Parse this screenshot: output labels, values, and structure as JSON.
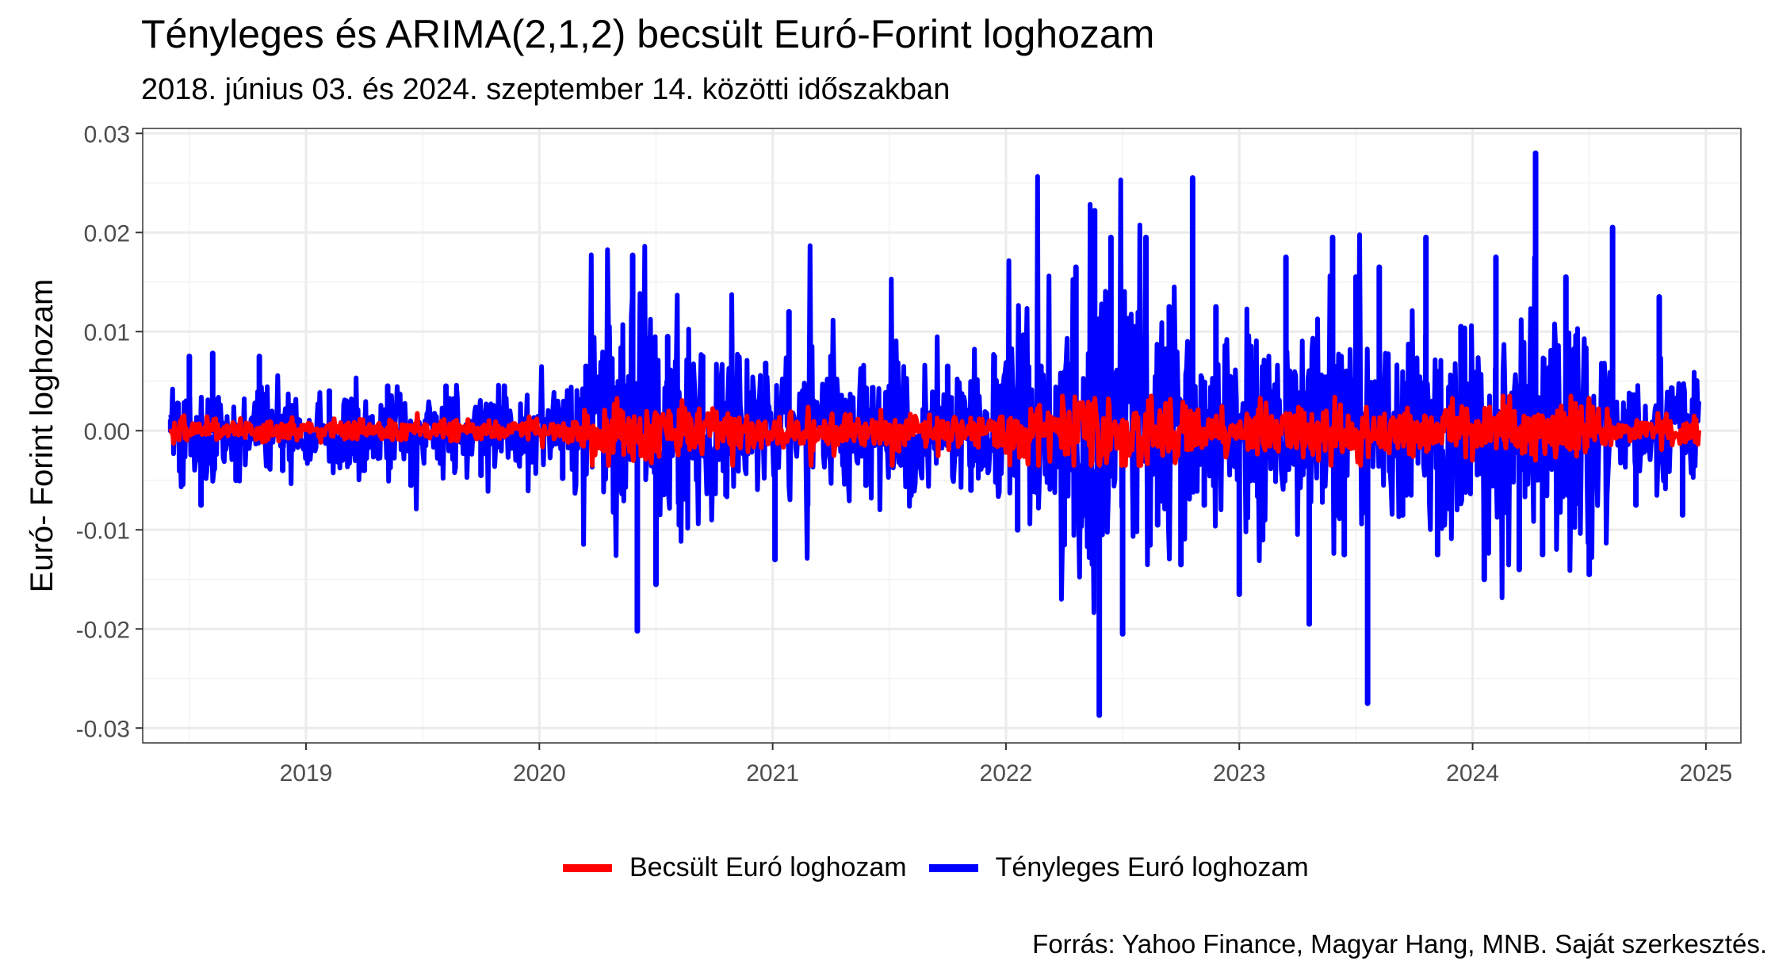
{
  "chart_data": {
    "type": "line",
    "title": "Tényleges és ARIMA(2,1,2) becsült Euró-Forint loghozam",
    "subtitle": "2018. június 03. és 2024. szeptember 14. közötti időszakban",
    "xlabel": "",
    "ylabel": "Euró- Forint loghozam",
    "xlim": [
      2018.3,
      2025.15
    ],
    "ylim": [
      -0.0315,
      0.0305
    ],
    "x_ticks": [
      2019,
      2020,
      2021,
      2022,
      2023,
      2024,
      2025
    ],
    "x_tick_labels": [
      "2019",
      "2020",
      "2021",
      "2022",
      "2023",
      "2024",
      "2025"
    ],
    "y_ticks": [
      -0.03,
      -0.02,
      -0.01,
      0.0,
      0.01,
      0.02,
      0.03
    ],
    "y_tick_labels": [
      "-0.03",
      "-0.02",
      "-0.01",
      "0.00",
      "0.01",
      "0.02",
      "0.03"
    ],
    "grid": true,
    "legend_position": "bottom",
    "series": [
      {
        "name": "Tényleges Euró loghozam",
        "color": "#0000ff",
        "sampled_extremes": [
          {
            "x": 2018.42,
            "y": 0.001
          },
          {
            "x": 2018.47,
            "y": -0.004
          },
          {
            "x": 2018.5,
            "y": 0.0075
          },
          {
            "x": 2018.55,
            "y": -0.0075
          },
          {
            "x": 2018.6,
            "y": 0.0078
          },
          {
            "x": 2018.7,
            "y": -0.005
          },
          {
            "x": 2018.8,
            "y": 0.0075
          },
          {
            "x": 2018.9,
            "y": -0.004
          },
          {
            "x": 2019.1,
            "y": 0.004
          },
          {
            "x": 2019.25,
            "y": -0.004
          },
          {
            "x": 2019.35,
            "y": 0.0045
          },
          {
            "x": 2019.45,
            "y": -0.0055
          },
          {
            "x": 2019.6,
            "y": 0.0045
          },
          {
            "x": 2019.75,
            "y": -0.0045
          },
          {
            "x": 2019.85,
            "y": 0.0045
          },
          {
            "x": 2020.1,
            "y": -0.0048
          },
          {
            "x": 2020.2,
            "y": 0.0065
          },
          {
            "x": 2020.37,
            "y": 0.0045
          },
          {
            "x": 2020.4,
            "y": 0.0177
          },
          {
            "x": 2020.42,
            "y": -0.0202
          },
          {
            "x": 2020.47,
            "y": 0.0093
          },
          {
            "x": 2020.5,
            "y": -0.0155
          },
          {
            "x": 2020.55,
            "y": 0.0095
          },
          {
            "x": 2020.6,
            "y": -0.0095
          },
          {
            "x": 2020.7,
            "y": 0.0075
          },
          {
            "x": 2020.8,
            "y": -0.0065
          },
          {
            "x": 2020.97,
            "y": 0.0068
          },
          {
            "x": 2021.01,
            "y": -0.013
          },
          {
            "x": 2021.07,
            "y": 0.012
          },
          {
            "x": 2021.15,
            "y": -0.0075
          },
          {
            "x": 2021.25,
            "y": 0.0075
          },
          {
            "x": 2021.4,
            "y": -0.0055
          },
          {
            "x": 2021.5,
            "y": 0.0045
          },
          {
            "x": 2021.6,
            "y": -0.005
          },
          {
            "x": 2021.75,
            "y": 0.0065
          },
          {
            "x": 2021.85,
            "y": -0.006
          },
          {
            "x": 2021.95,
            "y": 0.0075
          },
          {
            "x": 2022.05,
            "y": -0.01
          },
          {
            "x": 2022.15,
            "y": 0.0065
          },
          {
            "x": 2022.25,
            "y": -0.0115
          },
          {
            "x": 2022.3,
            "y": 0.0165
          },
          {
            "x": 2022.34,
            "y": -0.0085
          },
          {
            "x": 2022.38,
            "y": 0.0222
          },
          {
            "x": 2022.4,
            "y": -0.0287
          },
          {
            "x": 2022.45,
            "y": 0.0195
          },
          {
            "x": 2022.5,
            "y": -0.0205
          },
          {
            "x": 2022.55,
            "y": 0.0105
          },
          {
            "x": 2022.6,
            "y": 0.0195
          },
          {
            "x": 2022.65,
            "y": -0.0095
          },
          {
            "x": 2022.7,
            "y": 0.0125
          },
          {
            "x": 2022.75,
            "y": -0.0135
          },
          {
            "x": 2022.8,
            "y": 0.0255
          },
          {
            "x": 2022.85,
            "y": -0.0075
          },
          {
            "x": 2022.9,
            "y": 0.0125
          },
          {
            "x": 2023.0,
            "y": -0.0165
          },
          {
            "x": 2023.05,
            "y": 0.0085
          },
          {
            "x": 2023.1,
            "y": -0.011
          },
          {
            "x": 2023.2,
            "y": 0.0175
          },
          {
            "x": 2023.3,
            "y": -0.0195
          },
          {
            "x": 2023.4,
            "y": 0.0195
          },
          {
            "x": 2023.45,
            "y": -0.0125
          },
          {
            "x": 2023.5,
            "y": 0.0155
          },
          {
            "x": 2023.55,
            "y": -0.0275
          },
          {
            "x": 2023.6,
            "y": 0.0165
          },
          {
            "x": 2023.7,
            "y": -0.0085
          },
          {
            "x": 2023.8,
            "y": 0.0195
          },
          {
            "x": 2023.85,
            "y": -0.0125
          },
          {
            "x": 2023.95,
            "y": 0.0105
          },
          {
            "x": 2024.05,
            "y": -0.015
          },
          {
            "x": 2024.1,
            "y": 0.0175
          },
          {
            "x": 2024.2,
            "y": -0.014
          },
          {
            "x": 2024.27,
            "y": 0.028
          },
          {
            "x": 2024.3,
            "y": -0.0125
          },
          {
            "x": 2024.4,
            "y": 0.0155
          },
          {
            "x": 2024.5,
            "y": -0.0145
          },
          {
            "x": 2024.6,
            "y": 0.0205
          },
          {
            "x": 2024.7,
            "y": -0.0075
          },
          {
            "x": 2024.8,
            "y": 0.0135
          },
          {
            "x": 2024.9,
            "y": -0.0085
          }
        ]
      },
      {
        "name": "Becsült Euró loghozam",
        "color": "#ff0000",
        "amplitude_notes": "values stay within about ±0.0035; largest swings near 2020.4 and 2022.3"
      }
    ]
  },
  "legend": {
    "items": [
      {
        "label": "Becsült Euró loghozam",
        "color": "#ff0000"
      },
      {
        "label": "Tényleges Euró loghozam",
        "color": "#0000ff"
      }
    ]
  },
  "source": "Forrás: Yahoo Finance, Magyar Hang, MNB. Saját szerkesztés."
}
